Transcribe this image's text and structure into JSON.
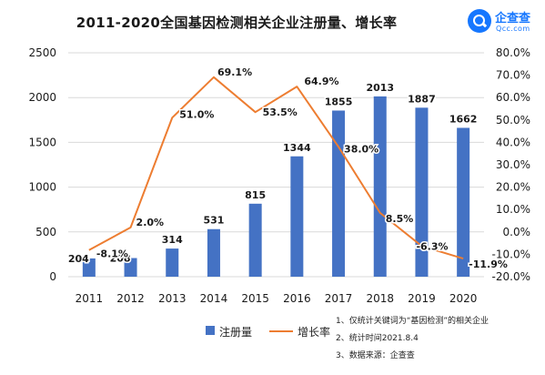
{
  "title": "2011-2020全国基因检测相关企业注册量、增长率",
  "logo": {
    "name": "企查查",
    "sub": "Qcc.com"
  },
  "colors": {
    "bar": "#4472c4",
    "line": "#ed7d31",
    "grid": "#d9d9d9",
    "text": "#1a1a1a"
  },
  "legend": [
    {
      "label": "注册量",
      "kind": "bar"
    },
    {
      "label": "增长率",
      "kind": "line"
    }
  ],
  "notes": [
    "1、仅统计关键词为“基因检测”的相关企业",
    "2、统计时间2021.8.4",
    "3、数据来源：企查查"
  ],
  "chart_data": {
    "type": "bar",
    "title": "2011-2020全国基因检测相关企业注册量、增长率",
    "categories": [
      "2011",
      "2012",
      "2013",
      "2014",
      "2015",
      "2016",
      "2017",
      "2018",
      "2019",
      "2020"
    ],
    "series": [
      {
        "name": "注册量",
        "type": "bar",
        "axis": "left",
        "values": [
          204,
          208,
          314,
          531,
          815,
          1344,
          1855,
          2013,
          1887,
          1662
        ],
        "labels": [
          "204",
          "208",
          "314",
          "531",
          "815",
          "1344",
          "1855",
          "2013",
          "1887",
          "1662"
        ]
      },
      {
        "name": "增长率",
        "type": "line",
        "axis": "right",
        "values": [
          -8.1,
          2.0,
          51.0,
          69.1,
          53.5,
          64.9,
          38.0,
          8.5,
          -6.3,
          -11.9
        ],
        "labels": [
          "-8.1%",
          "2.0%",
          "51.0%",
          "69.1%",
          "53.5%",
          "64.9%",
          "38.0%",
          "8.5%",
          "-6.3%",
          "-11.9%"
        ]
      }
    ],
    "y_left": {
      "min": 0,
      "max": 2500,
      "ticks": [
        "0",
        "500",
        "1000",
        "1500",
        "2000",
        "2500"
      ]
    },
    "y_right": {
      "min": -20,
      "max": 80,
      "ticks": [
        "-20.0%",
        "-10.0%",
        "0.0%",
        "10.0%",
        "20.0%",
        "30.0%",
        "40.0%",
        "50.0%",
        "60.0%",
        "70.0%",
        "80.0%"
      ]
    },
    "grid": true,
    "legend_position": "bottom"
  }
}
